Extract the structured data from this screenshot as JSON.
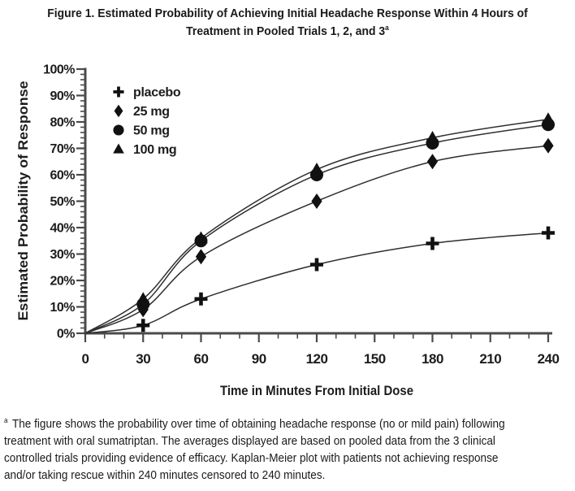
{
  "title": {
    "line1": "Figure 1. Estimated Probability of Achieving Initial Headache Response Within 4 Hours of",
    "line2": "Treatment in Pooled Trials 1, 2, and 3",
    "superscript": "a"
  },
  "footnote": {
    "marker": "a",
    "lines": [
      "The figure shows the probability over time of obtaining headache response (no or mild pain) following",
      "treatment with oral sumatriptan. The averages displayed are based on pooled data from the 3 clinical",
      "controlled trials providing evidence of efficacy. Kaplan-Meier plot with patients not achieving response",
      "and/or taking rescue within 240 minutes censored to 240 minutes."
    ]
  },
  "colors": {
    "ink": "#1c1c1c",
    "axis": "#4a4a4a",
    "curve": "#2e2e2e",
    "marker": "#111111"
  },
  "chart_data": {
    "type": "line",
    "title": "",
    "xlabel": "Time in Minutes From Initial Dose",
    "ylabel": "Estimated Probability of Response",
    "xlim": [
      0,
      240
    ],
    "ylim": [
      0,
      100
    ],
    "x": [
      0,
      30,
      60,
      120,
      180,
      240
    ],
    "x_major_ticks": [
      0,
      30,
      60,
      90,
      120,
      150,
      180,
      210,
      240
    ],
    "x_minor_step": 10,
    "y_major_step": 10,
    "y_minor_step": 2,
    "y_tick_suffix": "%",
    "grid": false,
    "legend_position": "top-left-inside",
    "series": [
      {
        "name": "placebo",
        "marker": "plus",
        "values": [
          0,
          3,
          13,
          26,
          34,
          38
        ]
      },
      {
        "name": "25 mg",
        "marker": "diamond",
        "values": [
          0,
          9,
          29,
          50,
          65,
          71
        ]
      },
      {
        "name": "50 mg",
        "marker": "circle",
        "values": [
          0,
          11,
          35,
          60,
          72,
          79
        ]
      },
      {
        "name": "100 mg",
        "marker": "triangle",
        "values": [
          0,
          13,
          36,
          62,
          74,
          81
        ]
      }
    ]
  }
}
